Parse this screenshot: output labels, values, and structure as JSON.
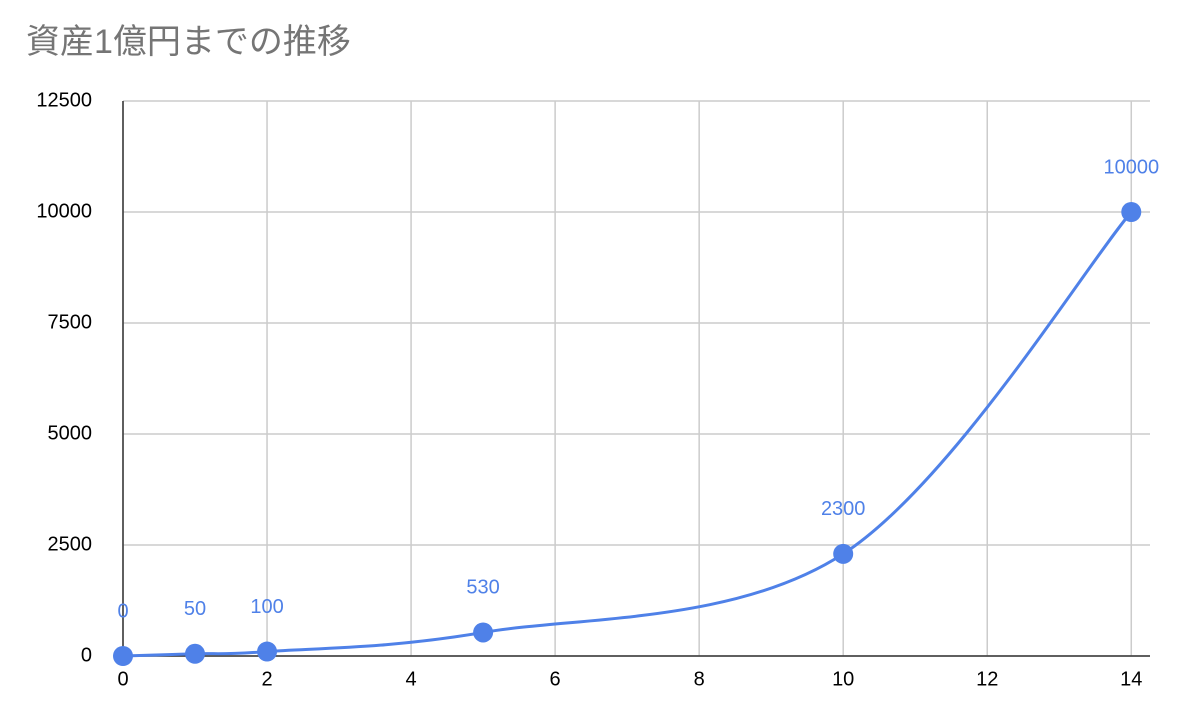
{
  "chart_data": {
    "type": "line",
    "title": "資産1億円までの推移",
    "x": [
      0,
      1,
      2,
      5,
      10,
      14
    ],
    "series": [
      {
        "color": "#4f81e8",
        "values": [
          0,
          50,
          100,
          530,
          2300,
          10000
        ]
      }
    ],
    "xlim": [
      0,
      14.26
    ],
    "xticks": [
      0,
      2,
      4,
      6,
      8,
      10,
      12,
      14
    ],
    "ylim": [
      0,
      12500
    ],
    "yticks": [
      0,
      2500,
      5000,
      7500,
      10000,
      12500
    ],
    "grid": true,
    "smooth": true
  }
}
